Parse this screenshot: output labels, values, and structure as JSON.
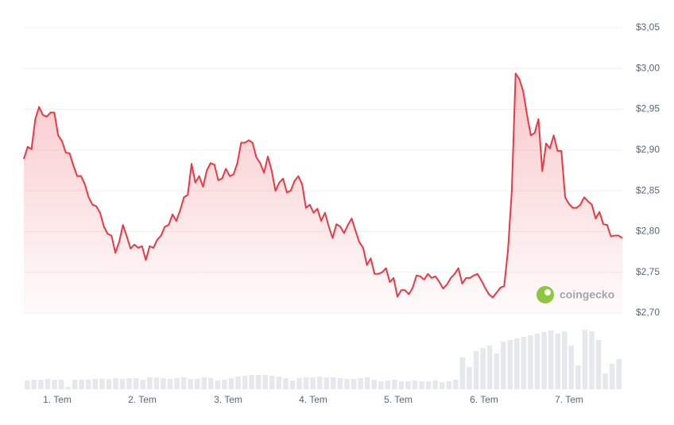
{
  "chart_data": {
    "type": "line",
    "watermark": "coingecko",
    "color": "#ea3943",
    "volume_color": "#e6e8ec",
    "grid": true,
    "ylim": [
      2.7,
      3.05
    ],
    "yticks": [
      {
        "value": 2.7,
        "label": "$2,70"
      },
      {
        "value": 2.75,
        "label": "$2,75"
      },
      {
        "value": 2.8,
        "label": "$2,80"
      },
      {
        "value": 2.85,
        "label": "$2,85"
      },
      {
        "value": 2.9,
        "label": "$2,90"
      },
      {
        "value": 2.95,
        "label": "$2,95"
      },
      {
        "value": 3.0,
        "label": "$3,00"
      },
      {
        "value": 3.05,
        "label": "$3,05"
      }
    ],
    "x_labels": [
      "1. Tem",
      "2. Tem",
      "3. Tem",
      "4. Tem",
      "5. Tem",
      "6. Tem",
      "7. Tem"
    ],
    "values": [
      2.889,
      2.904,
      2.901,
      2.938,
      2.953,
      2.943,
      2.941,
      2.946,
      2.946,
      2.918,
      2.911,
      2.897,
      2.896,
      2.881,
      2.868,
      2.868,
      2.858,
      2.842,
      2.833,
      2.831,
      2.823,
      2.806,
      2.797,
      2.795,
      2.774,
      2.787,
      2.808,
      2.794,
      2.779,
      2.784,
      2.78,
      2.782,
      2.765,
      2.782,
      2.78,
      2.79,
      2.795,
      2.806,
      2.808,
      2.821,
      2.813,
      2.826,
      2.842,
      2.845,
      2.883,
      2.86,
      2.868,
      2.855,
      2.875,
      2.884,
      2.882,
      2.863,
      2.865,
      2.877,
      2.868,
      2.87,
      2.884,
      2.909,
      2.909,
      2.912,
      2.909,
      2.891,
      2.884,
      2.872,
      2.892,
      2.875,
      2.85,
      2.86,
      2.865,
      2.848,
      2.85,
      2.862,
      2.868,
      2.858,
      2.829,
      2.833,
      2.823,
      2.828,
      2.813,
      2.823,
      2.806,
      2.792,
      2.809,
      2.806,
      2.798,
      2.808,
      2.816,
      2.801,
      2.787,
      2.78,
      2.759,
      2.767,
      2.748,
      2.748,
      2.75,
      2.755,
      2.738,
      2.743,
      2.72,
      2.728,
      2.728,
      2.723,
      2.731,
      2.746,
      2.745,
      2.741,
      2.748,
      2.743,
      2.745,
      2.738,
      2.73,
      2.735,
      2.743,
      2.748,
      2.755,
      2.736,
      2.743,
      2.743,
      2.746,
      2.748,
      2.74,
      2.731,
      2.723,
      2.719,
      2.725,
      2.731,
      2.733,
      2.777,
      2.85,
      2.994,
      2.987,
      2.972,
      2.943,
      2.918,
      2.921,
      2.938,
      2.874,
      2.908,
      2.902,
      2.918,
      2.899,
      2.899,
      2.842,
      2.834,
      2.829,
      2.829,
      2.833,
      2.842,
      2.837,
      2.833,
      2.816,
      2.824,
      2.809,
      2.808,
      2.794,
      2.795,
      2.795,
      2.792
    ],
    "volume_values": [
      11,
      12,
      12,
      13,
      12,
      12,
      3,
      12,
      12,
      12,
      13,
      13,
      13,
      14,
      13,
      14,
      14,
      12,
      15,
      15,
      14,
      13,
      14,
      15,
      13,
      13,
      15,
      14,
      11,
      12,
      14,
      16,
      17,
      18,
      18,
      18,
      17,
      16,
      14,
      11,
      14,
      15,
      15,
      16,
      15,
      15,
      14,
      13,
      13,
      14,
      15,
      12,
      10,
      11,
      12,
      10,
      10,
      11,
      10,
      10,
      11,
      9,
      10,
      12,
      40,
      28,
      48,
      52,
      55,
      45,
      60,
      62,
      64,
      66,
      68,
      70,
      72,
      74,
      70,
      73,
      55,
      30,
      75,
      73,
      62,
      20,
      32,
      38
    ]
  }
}
